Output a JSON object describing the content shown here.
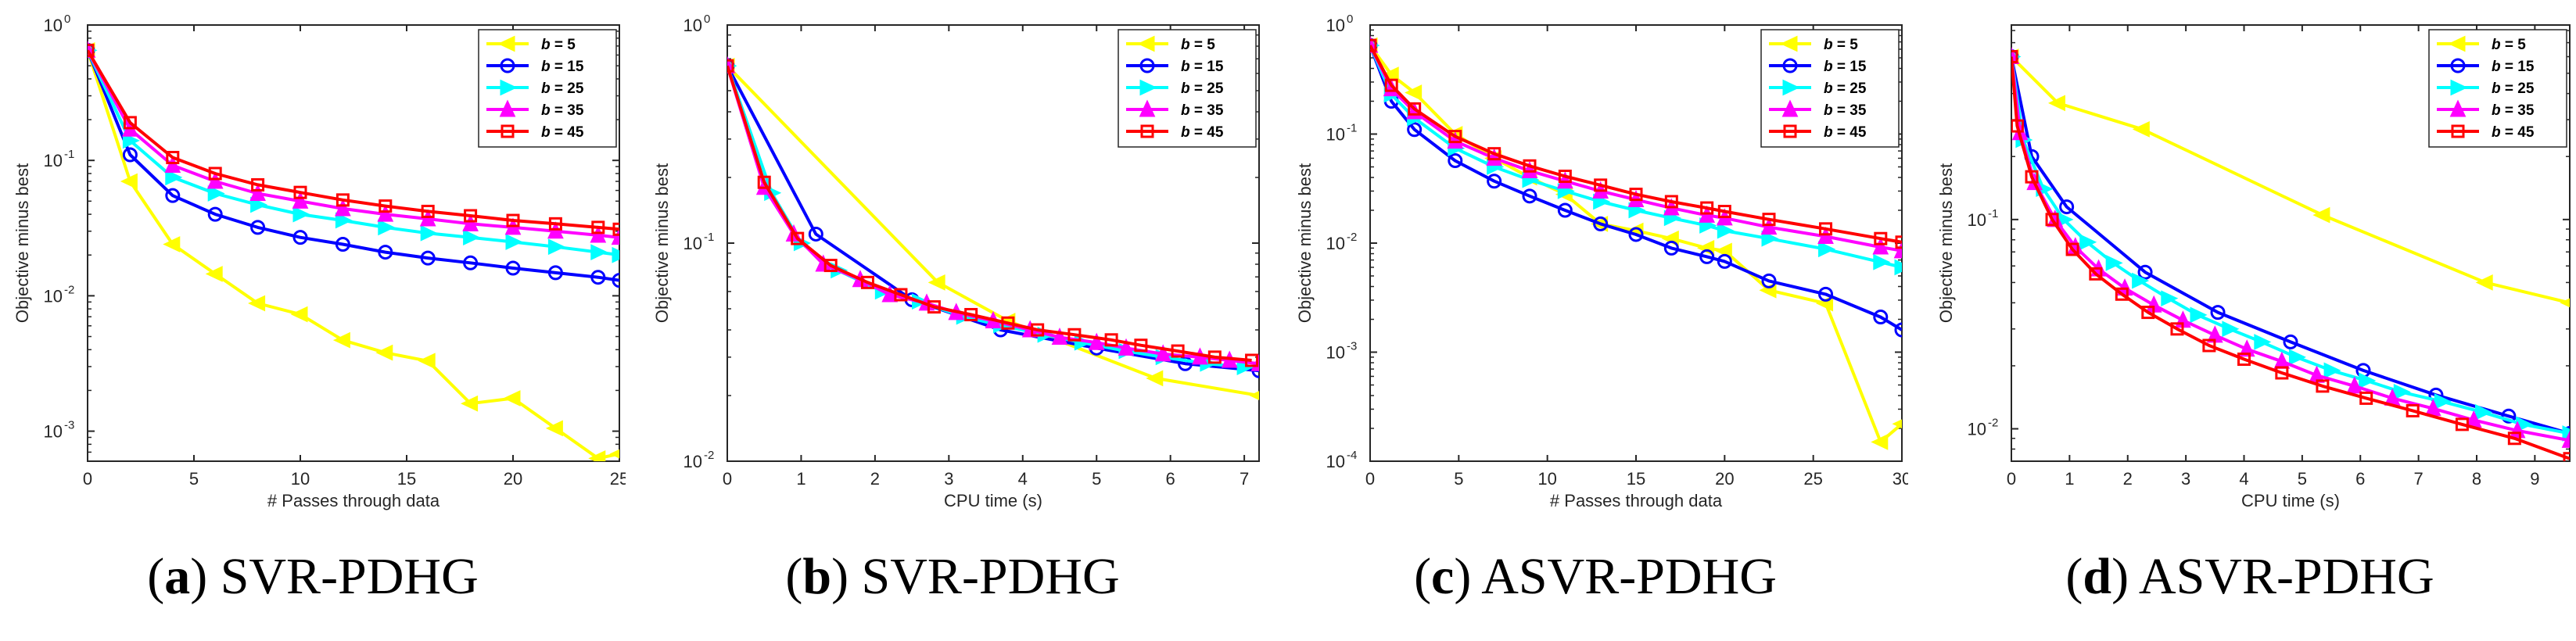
{
  "colors": {
    "b5": "#ffff00",
    "b15": "#0000ff",
    "b25": "#00ffff",
    "b35": "#ff00ff",
    "b45": "#ff0000",
    "axis": "#262626",
    "text": "#000000"
  },
  "legend_labels": [
    "b = 5",
    "b = 15",
    "b = 25",
    "b = 35",
    "b = 45"
  ],
  "chart_data": [
    {
      "type": "line",
      "yscale": "log",
      "caption_letter": "a",
      "caption_title": "SVR-PDHG",
      "xlabel": "# Passes through data",
      "ylabel": "Objective minus best",
      "xlim": [
        0,
        25
      ],
      "ylim": [
        0.0006,
        1
      ],
      "xticks": [
        0,
        5,
        10,
        15,
        20,
        25
      ],
      "xtick_labels": [
        "0",
        "5",
        "10",
        "15",
        "20",
        "25"
      ],
      "yticks": [
        0.001,
        0.01,
        0.1,
        1
      ],
      "ytick_labels": [
        "10^-3",
        "10^-2",
        "10^-1",
        "10^0"
      ],
      "legend": "top-right",
      "series": [
        {
          "name": "b = 5",
          "marker": "triangle-left",
          "x": [
            0,
            2,
            4,
            6,
            8,
            10,
            12,
            14,
            16,
            18,
            20,
            22,
            24,
            25
          ],
          "y": [
            0.65,
            0.07,
            0.024,
            0.0145,
            0.0088,
            0.0073,
            0.0047,
            0.0038,
            0.0033,
            0.0016,
            0.00175,
            0.00105,
            0.00063,
            0.00068
          ]
        },
        {
          "name": "b = 15",
          "marker": "circle",
          "x": [
            0,
            2,
            4,
            6,
            8,
            10,
            12,
            14,
            16,
            18,
            20,
            22,
            24,
            25
          ],
          "y": [
            0.65,
            0.11,
            0.055,
            0.04,
            0.032,
            0.027,
            0.024,
            0.021,
            0.019,
            0.0175,
            0.016,
            0.0148,
            0.0137,
            0.013
          ]
        },
        {
          "name": "b = 25",
          "marker": "triangle-right",
          "x": [
            0,
            2,
            4,
            6,
            8,
            10,
            12,
            14,
            16,
            18,
            20,
            22,
            24,
            25
          ],
          "y": [
            0.65,
            0.14,
            0.075,
            0.057,
            0.047,
            0.04,
            0.036,
            0.032,
            0.029,
            0.027,
            0.025,
            0.023,
            0.021,
            0.02
          ]
        },
        {
          "name": "b = 35",
          "marker": "triangle-up",
          "x": [
            0,
            2,
            4,
            6,
            8,
            10,
            12,
            14,
            16,
            18,
            20,
            22,
            24,
            25
          ],
          "y": [
            0.65,
            0.17,
            0.092,
            0.07,
            0.057,
            0.05,
            0.044,
            0.04,
            0.037,
            0.034,
            0.032,
            0.03,
            0.028,
            0.027
          ]
        },
        {
          "name": "b = 45",
          "marker": "square",
          "x": [
            0,
            2,
            4,
            6,
            8,
            10,
            12,
            14,
            16,
            18,
            20,
            22,
            24,
            25
          ],
          "y": [
            0.65,
            0.19,
            0.105,
            0.08,
            0.066,
            0.058,
            0.051,
            0.046,
            0.042,
            0.039,
            0.036,
            0.034,
            0.032,
            0.031
          ]
        }
      ]
    },
    {
      "type": "line",
      "yscale": "log",
      "caption_letter": "b",
      "caption_title": "SVR-PDHG",
      "xlabel": "CPU time (s)",
      "ylabel": "Objective minus best",
      "xlim": [
        0,
        7.2
      ],
      "ylim": [
        0.01,
        1
      ],
      "xticks": [
        0,
        1,
        2,
        3,
        4,
        5,
        6,
        7
      ],
      "xtick_labels": [
        "0",
        "1",
        "2",
        "3",
        "4",
        "5",
        "6",
        "7"
      ],
      "yticks": [
        0.01,
        0.1,
        1
      ],
      "ytick_labels": [
        "10^-2",
        "10^-1",
        "10^0"
      ],
      "legend": "top-right",
      "series": [
        {
          "name": "b = 5",
          "marker": "triangle-left",
          "x": [
            0,
            2.85,
            3.8,
            5.8,
            7.2
          ],
          "y": [
            0.65,
            0.066,
            0.044,
            0.024,
            0.02
          ]
        },
        {
          "name": "b = 15",
          "marker": "circle",
          "x": [
            0,
            1.2,
            2.5,
            3.7,
            5.0,
            6.2,
            7.2
          ],
          "y": [
            0.65,
            0.11,
            0.055,
            0.04,
            0.033,
            0.028,
            0.026
          ]
        },
        {
          "name": "b = 25",
          "marker": "triangle-right",
          "x": [
            0,
            0.6,
            1.0,
            1.5,
            2.1,
            2.6,
            3.2,
            3.7,
            4.3,
            4.8,
            5.4,
            5.9,
            6.5,
            7.0
          ],
          "y": [
            0.65,
            0.17,
            0.1,
            0.075,
            0.06,
            0.054,
            0.046,
            0.042,
            0.038,
            0.035,
            0.032,
            0.03,
            0.028,
            0.027
          ]
        },
        {
          "name": "b = 35",
          "marker": "triangle-up",
          "x": [
            0,
            0.5,
            0.9,
            1.3,
            1.8,
            2.2,
            2.7,
            3.1,
            3.6,
            4.1,
            4.5,
            5.0,
            5.4,
            5.9,
            6.4,
            6.8,
            7.2
          ],
          "y": [
            0.65,
            0.18,
            0.11,
            0.08,
            0.068,
            0.058,
            0.053,
            0.048,
            0.044,
            0.04,
            0.037,
            0.035,
            0.033,
            0.031,
            0.03,
            0.029,
            0.028
          ]
        },
        {
          "name": "b = 45",
          "marker": "square",
          "x": [
            0,
            0.5,
            0.95,
            1.4,
            1.9,
            2.35,
            2.8,
            3.3,
            3.8,
            4.2,
            4.7,
            5.2,
            5.6,
            6.1,
            6.6,
            7.1
          ],
          "y": [
            0.65,
            0.19,
            0.105,
            0.079,
            0.066,
            0.058,
            0.051,
            0.047,
            0.043,
            0.04,
            0.038,
            0.036,
            0.034,
            0.032,
            0.03,
            0.029
          ]
        }
      ]
    },
    {
      "type": "line",
      "yscale": "log",
      "caption_letter": "c",
      "caption_title": "ASVR-PDHG",
      "xlabel": "# Passes through data",
      "ylabel": "Objective minus best",
      "xlim": [
        0,
        30
      ],
      "ylim": [
        0.0001,
        1
      ],
      "xticks": [
        0,
        5,
        10,
        15,
        20,
        25,
        30
      ],
      "xtick_labels": [
        "0",
        "5",
        "10",
        "15",
        "20",
        "25",
        "30"
      ],
      "yticks": [
        0.0001,
        0.001,
        0.01,
        0.1,
        1
      ],
      "ytick_labels": [
        "10^-4",
        "10^-3",
        "10^-2",
        "10^-1",
        "10^0"
      ],
      "legend": "top-right",
      "series": [
        {
          "name": "b = 5",
          "marker": "triangle-left",
          "x": [
            0,
            1.2,
            2.5,
            4.8,
            7,
            9,
            11,
            13,
            15,
            17,
            19,
            20,
            22.5,
            25.7,
            28.8,
            30
          ],
          "y": [
            0.65,
            0.35,
            0.24,
            0.1,
            0.06,
            0.04,
            0.028,
            0.015,
            0.013,
            0.011,
            0.009,
            0.0085,
            0.0037,
            0.0028,
            0.00015,
            0.00022
          ]
        },
        {
          "name": "b = 15",
          "marker": "circle",
          "x": [
            0,
            1.2,
            2.5,
            4.8,
            7,
            9,
            11,
            13,
            15,
            17,
            19,
            20,
            22.5,
            25.7,
            28.8,
            30
          ],
          "y": [
            0.65,
            0.2,
            0.11,
            0.057,
            0.037,
            0.027,
            0.02,
            0.015,
            0.012,
            0.009,
            0.0075,
            0.0068,
            0.0045,
            0.0034,
            0.0021,
            0.0016
          ]
        },
        {
          "name": "b = 25",
          "marker": "triangle-right",
          "x": [
            0,
            1.2,
            2.5,
            4.8,
            7,
            9,
            11,
            13,
            15,
            17,
            19,
            20,
            22.5,
            25.7,
            28.8,
            30
          ],
          "y": [
            0.65,
            0.23,
            0.14,
            0.074,
            0.05,
            0.038,
            0.03,
            0.024,
            0.02,
            0.017,
            0.0145,
            0.013,
            0.011,
            0.0088,
            0.0067,
            0.006
          ]
        },
        {
          "name": "b = 35",
          "marker": "triangle-up",
          "x": [
            0,
            1.2,
            2.5,
            4.8,
            7,
            9,
            11,
            13,
            15,
            17,
            19,
            20,
            22.5,
            25.7,
            28.8,
            30
          ],
          "y": [
            0.65,
            0.26,
            0.16,
            0.086,
            0.06,
            0.046,
            0.037,
            0.03,
            0.025,
            0.021,
            0.018,
            0.017,
            0.014,
            0.0115,
            0.0092,
            0.0085
          ]
        },
        {
          "name": "b = 45",
          "marker": "square",
          "x": [
            0,
            1.2,
            2.5,
            4.8,
            7,
            9,
            11,
            13,
            15,
            17,
            19,
            20,
            22.5,
            25.7,
            28.8,
            30
          ],
          "y": [
            0.65,
            0.28,
            0.17,
            0.095,
            0.066,
            0.051,
            0.041,
            0.034,
            0.028,
            0.024,
            0.021,
            0.0195,
            0.0165,
            0.0135,
            0.011,
            0.0102
          ]
        }
      ]
    },
    {
      "type": "line",
      "yscale": "log",
      "caption_letter": "d",
      "caption_title": "ASVR-PDHG",
      "xlabel": "CPU time (s)",
      "ylabel": "Objective minus best",
      "xlim": [
        0,
        9.6
      ],
      "ylim": [
        0.007,
        0.85
      ],
      "xticks": [
        0,
        1,
        2,
        3,
        4,
        5,
        6,
        7,
        8,
        9
      ],
      "xtick_labels": [
        "0",
        "1",
        "2",
        "3",
        "4",
        "5",
        "6",
        "7",
        "8",
        "9"
      ],
      "yticks": [
        0.01,
        0.1
      ],
      "ytick_labels": [
        "10^-2",
        "10^-1"
      ],
      "legend": "top-right",
      "series": [
        {
          "name": "b = 5",
          "marker": "triangle-left",
          "x": [
            0,
            0.8,
            2.25,
            5.35,
            8.15,
            9.6
          ],
          "y": [
            0.6,
            0.36,
            0.27,
            0.105,
            0.05,
            0.04
          ]
        },
        {
          "name": "b = 15",
          "marker": "circle",
          "x": [
            0,
            0.35,
            0.95,
            2.3,
            3.55,
            4.8,
            6.05,
            7.3,
            8.55,
            9.6
          ],
          "y": [
            0.6,
            0.2,
            0.115,
            0.056,
            0.036,
            0.026,
            0.019,
            0.0145,
            0.0115,
            0.0095
          ]
        },
        {
          "name": "b = 25",
          "marker": "triangle-right",
          "x": [
            0,
            0.2,
            0.55,
            0.9,
            1.3,
            1.75,
            2.2,
            2.7,
            3.2,
            3.75,
            4.3,
            4.9,
            5.5,
            6.1,
            6.7,
            7.4,
            8.1,
            8.8,
            9.6
          ],
          "y": [
            0.6,
            0.24,
            0.14,
            0.1,
            0.078,
            0.062,
            0.051,
            0.042,
            0.035,
            0.03,
            0.026,
            0.022,
            0.019,
            0.017,
            0.015,
            0.0135,
            0.012,
            0.0105,
            0.0095
          ]
        },
        {
          "name": "b = 35",
          "marker": "triangle-up",
          "x": [
            0,
            0.15,
            0.4,
            0.75,
            1.1,
            1.5,
            1.95,
            2.45,
            2.95,
            3.5,
            4.05,
            4.65,
            5.25,
            5.9,
            6.55,
            7.25,
            7.95,
            8.7,
            9.6
          ],
          "y": [
            0.6,
            0.26,
            0.15,
            0.1,
            0.074,
            0.058,
            0.047,
            0.039,
            0.033,
            0.028,
            0.024,
            0.021,
            0.018,
            0.016,
            0.014,
            0.0125,
            0.011,
            0.0098,
            0.0088
          ]
        },
        {
          "name": "b = 45",
          "marker": "square",
          "x": [
            0,
            0.1,
            0.35,
            0.7,
            1.05,
            1.45,
            1.9,
            2.35,
            2.85,
            3.4,
            4.0,
            4.65,
            5.35,
            6.1,
            6.9,
            7.75,
            8.65,
            9.6
          ],
          "y": [
            0.6,
            0.28,
            0.16,
            0.1,
            0.072,
            0.055,
            0.044,
            0.036,
            0.03,
            0.025,
            0.0215,
            0.0185,
            0.016,
            0.014,
            0.0122,
            0.0105,
            0.009,
            0.0072
          ]
        }
      ]
    }
  ]
}
